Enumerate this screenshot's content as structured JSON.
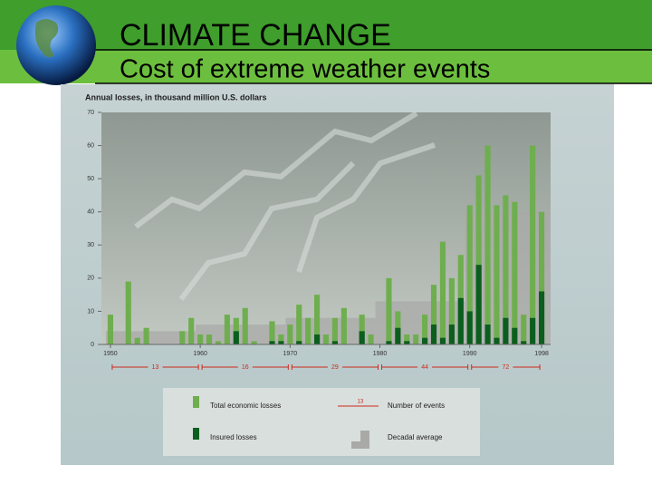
{
  "chart_data": {
    "type": "bar",
    "title": "CLIMATE CHANGE",
    "subtitle": "Cost of extreme weather events",
    "y_label": "Annual losses, in thousand million U.S. dollars",
    "x": [
      1950,
      1951,
      1952,
      1953,
      1954,
      1955,
      1956,
      1957,
      1958,
      1959,
      1960,
      1961,
      1962,
      1963,
      1964,
      1965,
      1966,
      1967,
      1968,
      1969,
      1970,
      1971,
      1972,
      1973,
      1974,
      1975,
      1976,
      1977,
      1978,
      1979,
      1980,
      1981,
      1982,
      1983,
      1984,
      1985,
      1986,
      1987,
      1988,
      1989,
      1990,
      1991,
      1992,
      1993,
      1994,
      1995,
      1996,
      1997,
      1998
    ],
    "series": [
      {
        "name": "Total economic losses",
        "color": "#6fae4f",
        "values": [
          9,
          0,
          19,
          2,
          5,
          0,
          0,
          0,
          4,
          8,
          3,
          3,
          1,
          9,
          8,
          11,
          1,
          0,
          7,
          3,
          6,
          12,
          8,
          15,
          3,
          8,
          11,
          0,
          9,
          3,
          0,
          20,
          10,
          3,
          3,
          9,
          18,
          31,
          20,
          27,
          42,
          51,
          60,
          42,
          45,
          43,
          9,
          60,
          40
        ]
      },
      {
        "name": "Insured losses",
        "color": "#0b5e1e",
        "values": [
          0,
          0,
          0,
          0,
          0,
          0,
          0,
          0,
          0,
          0,
          0,
          0,
          0,
          0,
          4,
          0,
          0,
          0,
          1,
          1,
          0,
          1,
          0,
          3,
          0,
          1,
          0,
          0,
          4,
          0,
          0,
          1,
          5,
          1,
          0,
          2,
          6,
          2,
          6,
          14,
          10,
          24,
          6,
          2,
          8,
          5,
          1,
          8,
          16
        ]
      }
    ],
    "decades": [
      1950,
      1960,
      1970,
      1980,
      1990
    ],
    "decadal_average": {
      "name": "Decadal average",
      "color": "#a9aaa8",
      "values": [
        4,
        6,
        8,
        13,
        40
      ]
    },
    "events": {
      "name": "Number of events",
      "color": "#cc2a1a",
      "values": [
        13,
        16,
        29,
        44,
        72
      ]
    },
    "events_legend_sample": 13,
    "xlim": [
      1949,
      1999
    ],
    "xticks": [
      1950,
      1960,
      1970,
      1980,
      1990,
      1998
    ],
    "ylim": [
      0,
      70
    ],
    "yticks": [
      0,
      10,
      20,
      30,
      40,
      50,
      60,
      70
    ],
    "grid": false
  }
}
